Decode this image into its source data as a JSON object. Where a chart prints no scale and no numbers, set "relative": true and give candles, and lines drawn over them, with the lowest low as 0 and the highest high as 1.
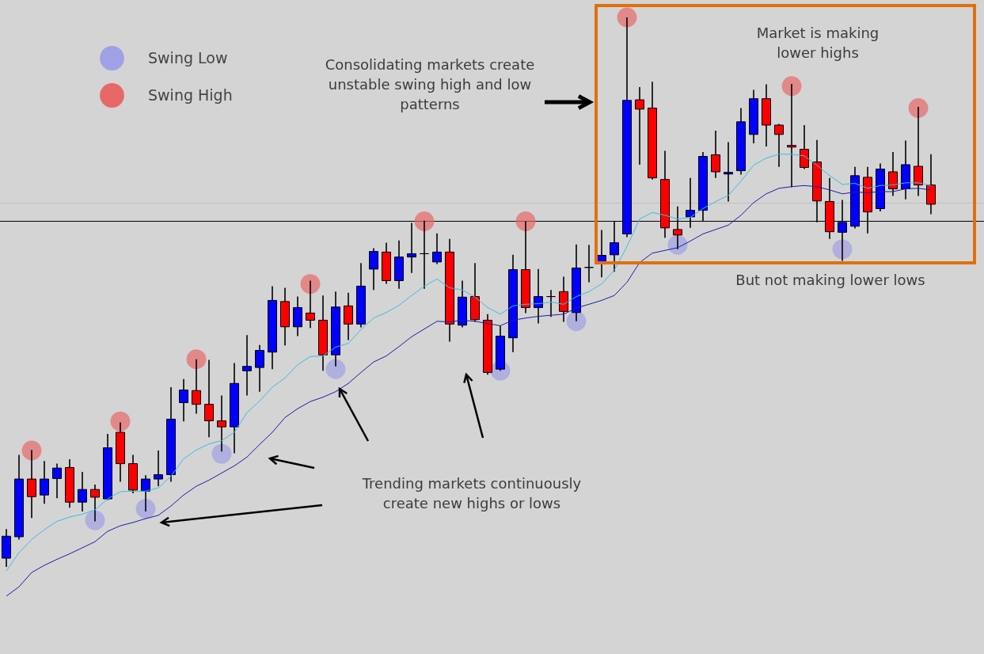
{
  "chart_data": {
    "type": "candlestick",
    "relative": true,
    "legend": "top left",
    "categories": [
      null,
      null,
      null,
      null,
      null,
      null,
      null,
      null,
      null,
      null,
      null,
      null,
      null,
      null,
      null,
      null,
      null,
      null,
      null,
      null,
      null,
      null,
      null,
      null,
      null,
      null,
      null,
      null,
      null,
      null,
      null,
      null,
      null,
      null,
      null,
      null,
      null,
      null,
      null,
      null,
      null,
      null,
      null,
      null,
      null,
      null,
      null,
      null,
      null,
      null,
      null,
      null,
      null,
      null,
      null,
      null,
      null,
      null,
      null,
      null,
      null,
      null,
      null,
      null,
      null,
      null,
      null,
      null,
      null,
      null,
      null,
      null,
      null,
      null
    ],
    "ohlc": [
      [
        0.016,
        0.069,
        0,
        0.056
      ],
      [
        0.055,
        0.204,
        0.05,
        0.16
      ],
      [
        0.16,
        0.213,
        0.089,
        0.128
      ],
      [
        0.131,
        0.193,
        0.115,
        0.16
      ],
      [
        0.161,
        0.188,
        0.125,
        0.18
      ],
      [
        0.181,
        0.196,
        0.108,
        0.118
      ],
      [
        0.118,
        0.173,
        0.101,
        0.141
      ],
      [
        0.141,
        0.15,
        0.083,
        0.127
      ],
      [
        0.124,
        0.242,
        0.122,
        0.217
      ],
      [
        0.245,
        0.263,
        0.155,
        0.188
      ],
      [
        0.188,
        0.204,
        0.134,
        0.14
      ],
      [
        0.138,
        0.167,
        0.101,
        0.16
      ],
      [
        0.16,
        0.212,
        0.147,
        0.168
      ],
      [
        0.168,
        0.327,
        0.155,
        0.269
      ],
      [
        0.299,
        0.342,
        0.265,
        0.322
      ],
      [
        0.321,
        0.378,
        0.279,
        0.296
      ],
      [
        0.296,
        0.377,
        0.236,
        0.266
      ],
      [
        0.266,
        0.312,
        0.21,
        0.255
      ],
      [
        0.255,
        0.371,
        0.207,
        0.334
      ],
      [
        0.357,
        0.422,
        0.312,
        0.365
      ],
      [
        0.363,
        0.404,
        0.319,
        0.394
      ],
      [
        0.391,
        0.511,
        0.36,
        0.485
      ],
      [
        0.483,
        0.508,
        0.403,
        0.437
      ],
      [
        0.437,
        0.492,
        0.42,
        0.472
      ],
      [
        0.462,
        0.521,
        0.435,
        0.449
      ],
      [
        0.449,
        0.494,
        0.357,
        0.386
      ],
      [
        0.386,
        0.501,
        0.365,
        0.473
      ],
      [
        0.475,
        0.499,
        0.413,
        0.442
      ],
      [
        0.442,
        0.553,
        0.436,
        0.511
      ],
      [
        0.542,
        0.58,
        0.504,
        0.574
      ],
      [
        0.573,
        0.59,
        0.515,
        0.521
      ],
      [
        0.521,
        0.594,
        0.506,
        0.564
      ],
      [
        0.564,
        0.626,
        0.535,
        0.57
      ],
      [
        0.57,
        0.63,
        0.506,
        0.57
      ],
      [
        0.555,
        0.607,
        0.551,
        0.573
      ],
      [
        0.573,
        0.597,
        0.41,
        0.442
      ],
      [
        0.44,
        0.521,
        0.436,
        0.491
      ],
      [
        0.492,
        0.553,
        0.446,
        0.45
      ],
      [
        0.449,
        0.46,
        0.35,
        0.354
      ],
      [
        0.36,
        0.439,
        0.357,
        0.42
      ],
      [
        0.417,
        0.568,
        0.391,
        0.541
      ],
      [
        0.541,
        0.629,
        0.462,
        0.472
      ],
      [
        0.472,
        0.542,
        0.443,
        0.492
      ],
      [
        0.492,
        0.504,
        0.455,
        0.492
      ],
      [
        0.501,
        0.528,
        0.446,
        0.465
      ],
      [
        0.463,
        0.587,
        0.447,
        0.544
      ],
      [
        0.545,
        0.586,
        0.518,
        0.545
      ],
      [
        0.553,
        0.613,
        0.527,
        0.567
      ],
      [
        0.568,
        0.629,
        0.537,
        0.59
      ],
      [
        0.606,
        1,
        0.6,
        0.849
      ],
      [
        0.85,
        0.873,
        0.732,
        0.833
      ],
      [
        0.835,
        0.883,
        0.705,
        0.708
      ],
      [
        0.705,
        0.757,
        0.599,
        0.617
      ],
      [
        0.614,
        0.656,
        0.578,
        0.604
      ],
      [
        0.637,
        0.708,
        0.617,
        0.649
      ],
      [
        0.649,
        0.755,
        0.629,
        0.747
      ],
      [
        0.75,
        0.794,
        0.708,
        0.719
      ],
      [
        0.715,
        0.773,
        0.665,
        0.718
      ],
      [
        0.721,
        0.835,
        0.714,
        0.81
      ],
      [
        0.787,
        0.868,
        0.771,
        0.852
      ],
      [
        0.852,
        0.878,
        0.765,
        0.804
      ],
      [
        0.804,
        0.806,
        0.728,
        0.787
      ],
      [
        0.767,
        0.879,
        0.691,
        0.764
      ],
      [
        0.76,
        0.804,
        0.724,
        0.727
      ],
      [
        0.737,
        0.777,
        0.627,
        0.666
      ],
      [
        0.665,
        0.708,
        0.597,
        0.61
      ],
      [
        0.609,
        0.668,
        0.557,
        0.627
      ],
      [
        0.62,
        0.728,
        0.616,
        0.712
      ],
      [
        0.709,
        0.728,
        0.607,
        0.646
      ],
      [
        0.652,
        0.734,
        0.647,
        0.724
      ],
      [
        0.719,
        0.755,
        0.675,
        0.688
      ],
      [
        0.688,
        0.776,
        0.669,
        0.732
      ],
      [
        0.729,
        0.837,
        0.675,
        0.695
      ],
      [
        0.695,
        0.751,
        0.642,
        0.66
      ]
    ],
    "colors": [
      "#0000ff",
      "#0000ff",
      "#ff0000",
      "#0000ff",
      "#0000ff",
      "#ff0000",
      "#0000ff",
      "#ff0000",
      "#0000ff",
      "#ff0000",
      "#ff0000",
      "#0000ff",
      "#0000ff",
      "#0000ff",
      "#0000ff",
      "#ff0000",
      "#ff0000",
      "#ff0000",
      "#0000ff",
      "#0000ff",
      "#0000ff",
      "#0000ff",
      "#ff0000",
      "#0000ff",
      "#ff0000",
      "#ff0000",
      "#0000ff",
      "#ff0000",
      "#0000ff",
      "#0000ff",
      "#ff0000",
      "#0000ff",
      "#0000ff",
      "#000000",
      "#0000ff",
      "#ff0000",
      "#0000ff",
      "#ff0000",
      "#ff0000",
      "#0000ff",
      "#0000ff",
      "#ff0000",
      "#0000ff",
      "#000000",
      "#ff0000",
      "#0000ff",
      "#000000",
      "#0000ff",
      "#0000ff",
      "#0000ff",
      "#ff0000",
      "#ff0000",
      "#ff0000",
      "#ff0000",
      "#0000ff",
      "#0000ff",
      "#ff0000",
      "#0000ff",
      "#0000ff",
      "#0000ff",
      "#ff0000",
      "#ff0000",
      "#ff0000",
      "#ff0000",
      "#ff0000",
      "#ff0000",
      "#0000ff",
      "#0000ff",
      "#ff0000",
      "#0000ff",
      "#ff0000",
      "#0000ff",
      "#ff0000",
      "#ff0000"
    ],
    "series": [
      {
        "type": "line",
        "color": "#3cbde0",
        "values": [
          -0.007,
          0.026,
          0.05,
          0.068,
          0.083,
          0.091,
          0.096,
          0.104,
          0.124,
          0.137,
          0.138,
          0.138,
          0.144,
          0.165,
          0.197,
          0.213,
          0.224,
          0.23,
          0.245,
          0.281,
          0.302,
          0.327,
          0.344,
          0.368,
          0.383,
          0.384,
          0.4,
          0.407,
          0.432,
          0.453,
          0.463,
          0.476,
          0.494,
          0.511,
          0.524,
          0.508,
          0.504,
          0.491,
          0.472,
          0.46,
          0.475,
          0.478,
          0.479,
          0.482,
          0.478,
          0.492,
          0.501,
          0.515,
          0.54,
          0.583,
          0.633,
          0.645,
          0.64,
          0.633,
          0.636,
          0.652,
          0.665,
          0.676,
          0.702,
          0.731,
          0.744,
          0.751,
          0.751,
          0.748,
          0.731,
          0.712,
          0.696,
          0.698,
          0.689,
          0.694,
          0.695,
          0.699,
          0.699,
          0.694
        ]
      },
      {
        "type": "line",
        "color": "#1c1ca8",
        "values": [
          -0.053,
          -0.036,
          -0.01,
          0.003,
          0.014,
          0.024,
          0.035,
          0.046,
          0.065,
          0.075,
          0.081,
          0.088,
          0.094,
          0.111,
          0.131,
          0.147,
          0.158,
          0.171,
          0.184,
          0.2,
          0.223,
          0.245,
          0.272,
          0.288,
          0.301,
          0.309,
          0.319,
          0.334,
          0.354,
          0.373,
          0.384,
          0.401,
          0.419,
          0.433,
          0.447,
          0.446,
          0.449,
          0.447,
          0.443,
          0.439,
          0.449,
          0.453,
          0.456,
          0.458,
          0.46,
          0.471,
          0.478,
          0.485,
          0.494,
          0.518,
          0.554,
          0.571,
          0.576,
          0.581,
          0.593,
          0.606,
          0.614,
          0.622,
          0.64,
          0.663,
          0.679,
          0.689,
          0.692,
          0.694,
          0.692,
          0.686,
          0.679,
          0.682,
          0.681,
          0.683,
          0.683,
          0.688,
          0.689,
          0.686
        ]
      },
      {
        "type": "scatter",
        "name": "Swing Low",
        "color": "#a0a0e6",
        "values": [
          null,
          null,
          null,
          null,
          null,
          null,
          null,
          0.085,
          null,
          null,
          null,
          0.106,
          null,
          null,
          null,
          null,
          null,
          0.206,
          null,
          null,
          null,
          null,
          null,
          null,
          null,
          null,
          0.36,
          null,
          null,
          null,
          null,
          null,
          null,
          null,
          null,
          null,
          null,
          null,
          null,
          0.357,
          null,
          null,
          null,
          null,
          null,
          0.447,
          null,
          null,
          null,
          null,
          null,
          null,
          null,
          0.586,
          null,
          null,
          null,
          null,
          null,
          null,
          null,
          null,
          null,
          null,
          null,
          null,
          0.578,
          null,
          null,
          null,
          null,
          null,
          null,
          null
        ]
      },
      {
        "type": "scatter",
        "name": "Swing High",
        "color": "#e86868",
        "values": [
          null,
          null,
          0.212,
          null,
          null,
          null,
          null,
          null,
          null,
          0.265,
          null,
          null,
          null,
          null,
          null,
          0.378,
          null,
          null,
          null,
          null,
          null,
          null,
          null,
          null,
          0.515,
          null,
          null,
          null,
          null,
          null,
          null,
          null,
          null,
          0.629,
          null,
          null,
          null,
          null,
          null,
          null,
          null,
          0.629,
          null,
          null,
          null,
          null,
          null,
          null,
          null,
          1,
          null,
          null,
          null,
          null,
          null,
          null,
          null,
          null,
          null,
          null,
          null,
          null,
          0.875,
          null,
          null,
          null,
          null,
          null,
          null,
          null,
          null,
          null,
          0.835,
          null
        ]
      }
    ],
    "ref_lines": [
      {
        "axis": "y",
        "value": 0.629,
        "color": "#000000"
      },
      {
        "axis": "y",
        "value": 0.662,
        "color": "#bdbdbd"
      }
    ],
    "annotations": [
      "Consolidating markets create unstable swing high and low patterns",
      "Market is making lower highs",
      "But not making lower lows",
      "Trending markets continuously create new highs or lows"
    ]
  }
}
